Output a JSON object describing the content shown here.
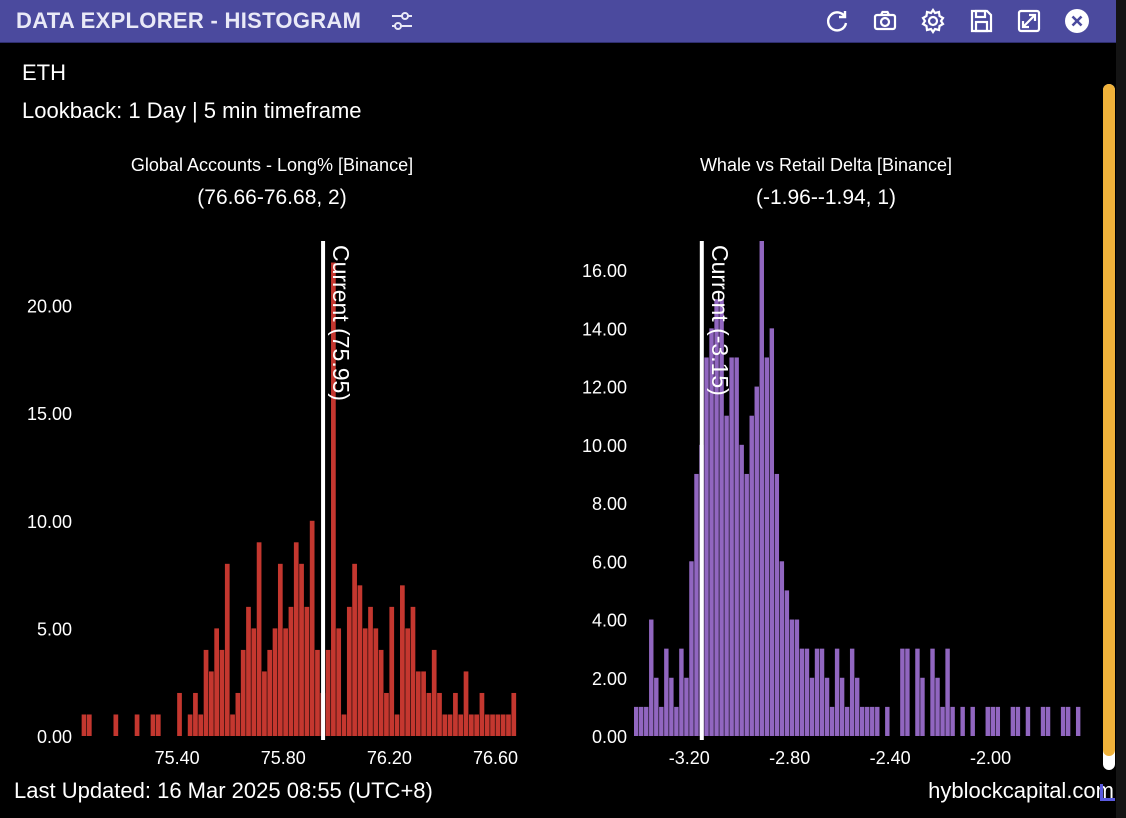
{
  "window": {
    "title": "DATA EXPLORER - HISTOGRAM",
    "icons": [
      "sliders-icon",
      "refresh-icon",
      "camera-icon",
      "gear-icon",
      "save-icon",
      "expand-icon",
      "close-icon"
    ]
  },
  "header": {
    "symbol": "ETH",
    "lookback": "Lookback: 1 Day | 5 min timeframe"
  },
  "footer": {
    "last_updated": "Last Updated: 16 Mar 2025 08:55 (UTC+8)",
    "brand": "hyblockcapital.com"
  },
  "colors": {
    "titlebar": "#4b4a9e",
    "left_bars": "#c4372f",
    "right_bars": "#9166c0",
    "scrollbar": "#f0b23a"
  },
  "chart_data": [
    {
      "type": "bar",
      "title": "Global Accounts - Long% [Binance]",
      "subtitle": "(76.66-76.68, 2)",
      "current_label": "Current (75.95)",
      "current_value": 75.95,
      "bin_width": 0.02,
      "xlim": [
        75.03,
        76.73
      ],
      "ylim": [
        0,
        23
      ],
      "y_ticks": [
        0,
        5,
        10,
        15,
        20
      ],
      "y_tick_labels": [
        "0.00",
        "5.00",
        "10.00",
        "15.00",
        "20.00"
      ],
      "x_ticks": [
        75.4,
        75.8,
        76.2,
        76.6
      ],
      "x_tick_labels": [
        "75.40",
        "75.80",
        "76.20",
        "76.60"
      ],
      "x": [
        75.05,
        75.07,
        75.17,
        75.25,
        75.31,
        75.33,
        75.41,
        75.45,
        75.47,
        75.49,
        75.51,
        75.53,
        75.55,
        75.57,
        75.59,
        75.61,
        75.63,
        75.65,
        75.67,
        75.69,
        75.71,
        75.73,
        75.75,
        75.77,
        75.79,
        75.81,
        75.83,
        75.85,
        75.87,
        75.89,
        75.91,
        75.93,
        75.95,
        75.97,
        75.99,
        76.01,
        76.03,
        76.05,
        76.07,
        76.09,
        76.11,
        76.13,
        76.15,
        76.17,
        76.19,
        76.21,
        76.23,
        76.25,
        76.27,
        76.29,
        76.31,
        76.33,
        76.35,
        76.37,
        76.39,
        76.41,
        76.43,
        76.45,
        76.47,
        76.49,
        76.51,
        76.53,
        76.55,
        76.57,
        76.59,
        76.61,
        76.63,
        76.65,
        76.67
      ],
      "values": [
        1,
        1,
        1,
        1,
        1,
        1,
        2,
        1,
        2,
        1,
        4,
        3,
        5,
        4,
        8,
        1,
        2,
        4,
        6,
        5,
        9,
        3,
        4,
        5,
        8,
        5,
        6,
        9,
        8,
        6,
        10,
        4,
        2,
        4,
        22,
        5,
        1,
        6,
        8,
        7,
        5,
        6,
        5,
        4,
        2,
        6,
        1,
        7,
        5,
        6,
        3,
        3,
        2,
        4,
        2,
        1,
        1,
        2,
        1,
        3,
        1,
        1,
        2,
        1,
        1,
        1,
        1,
        1,
        2
      ]
    },
    {
      "type": "bar",
      "title": "Whale vs Retail Delta [Binance]",
      "subtitle": "(-1.96--1.94, 1)",
      "current_label": "Current (-3.15)",
      "current_value": -3.15,
      "bin_width": 0.02,
      "xlim": [
        -3.42,
        -1.62
      ],
      "ylim": [
        0,
        17
      ],
      "y_ticks": [
        0,
        2,
        4,
        6,
        8,
        10,
        12,
        14,
        16
      ],
      "y_tick_labels": [
        "0.00",
        "2.00",
        "4.00",
        "6.00",
        "8.00",
        "10.00",
        "12.00",
        "14.00",
        "16.00"
      ],
      "x_ticks": [
        -3.2,
        -2.8,
        -2.4,
        -2.0
      ],
      "x_tick_labels": [
        "-3.20",
        "-2.80",
        "-2.40",
        "-2.00"
      ],
      "x": [
        -3.41,
        -3.39,
        -3.37,
        -3.35,
        -3.33,
        -3.31,
        -3.29,
        -3.27,
        -3.25,
        -3.23,
        -3.21,
        -3.19,
        -3.17,
        -3.15,
        -3.13,
        -3.11,
        -3.09,
        -3.07,
        -3.05,
        -3.03,
        -3.01,
        -2.99,
        -2.97,
        -2.95,
        -2.93,
        -2.91,
        -2.89,
        -2.87,
        -2.85,
        -2.83,
        -2.81,
        -2.79,
        -2.77,
        -2.75,
        -2.73,
        -2.71,
        -2.69,
        -2.67,
        -2.65,
        -2.63,
        -2.61,
        -2.59,
        -2.57,
        -2.55,
        -2.53,
        -2.51,
        -2.49,
        -2.47,
        -2.45,
        -2.43,
        -2.41,
        -2.39,
        -2.35,
        -2.33,
        -2.29,
        -2.27,
        -2.23,
        -2.21,
        -2.19,
        -2.17,
        -2.15,
        -2.13,
        -2.11,
        -2.07,
        -2.05,
        -2.01,
        -1.99,
        -1.97,
        -1.91,
        -1.89,
        -1.85,
        -1.79,
        -1.77,
        -1.71,
        -1.69,
        -1.65
      ],
      "values": [
        1,
        1,
        1,
        4,
        2,
        1,
        3,
        2,
        1,
        3,
        2,
        6,
        9,
        10,
        13,
        14,
        15,
        15,
        11,
        13,
        13,
        10,
        9,
        11,
        12,
        17,
        13,
        14,
        9,
        6,
        5,
        4,
        4,
        3,
        3,
        2,
        3,
        3,
        2,
        1,
        3,
        2,
        1,
        3,
        2,
        1,
        1,
        1,
        1,
        0,
        1,
        0,
        3,
        3,
        3,
        2,
        3,
        2,
        1,
        3,
        1,
        0,
        1,
        1,
        0,
        1,
        1,
        1,
        1,
        1,
        1,
        1,
        1,
        1,
        1,
        1
      ]
    }
  ]
}
